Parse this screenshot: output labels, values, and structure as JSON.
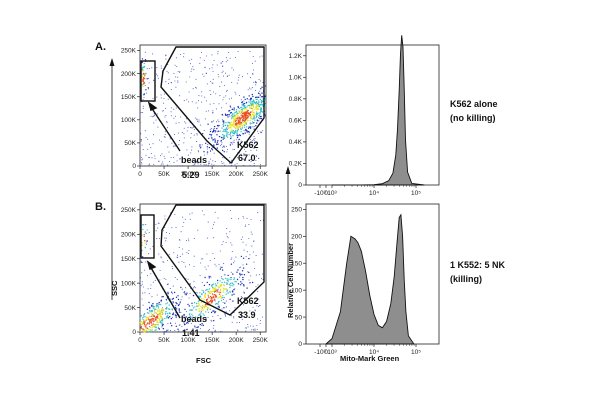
{
  "panels": [
    {
      "letter": "A.",
      "side_label": [
        "K562 alone",
        "(no killing)"
      ]
    },
    {
      "letter": "B.",
      "side_label": [
        "1 K552: 5 NK",
        "(killing)"
      ]
    }
  ],
  "scatter_axis": {
    "xlabel": "FSC",
    "ylabel": "SSC",
    "x_ticks": [
      "0",
      "50K",
      "100K",
      "150K",
      "200K",
      "250K"
    ],
    "y_ticks": [
      "0",
      "50K",
      "100K",
      "150K",
      "200K",
      "250K"
    ]
  },
  "histogram_axis": {
    "xlabel": "Mito-Mark Green",
    "ylabel": "Relative Cell Number",
    "top_y_ticks": [
      "0",
      "0.2K",
      "0.4K",
      "0.6K",
      "0.8K",
      "1.0K",
      "1.2K"
    ],
    "bottom_y_ticks": [
      "0",
      "50",
      "100",
      "150",
      "200",
      "250"
    ]
  },
  "chart_data": [
    {
      "type": "scatter",
      "panel": "A",
      "xlabel": "FSC",
      "ylabel": "SSC",
      "xlim": [
        0,
        262000
      ],
      "ylim": [
        0,
        262000
      ],
      "population_centers": [
        {
          "x": 215000,
          "y": 105000,
          "weight": 0.67
        },
        {
          "x": 8000,
          "y": 190000,
          "weight": 0.05
        }
      ],
      "gates": [
        {
          "name": "beads",
          "value": "5.29"
        },
        {
          "name": "K562",
          "value": "67.0"
        }
      ]
    },
    {
      "type": "line",
      "panel": "A",
      "xlabel": "Mito-Mark Green",
      "x_ticks": [
        "-10³",
        "0",
        "10³",
        "10⁴",
        "10⁵"
      ],
      "ylim": [
        0,
        1300
      ],
      "x": [
        3.0,
        3.7,
        4.0,
        4.2,
        4.35,
        4.45,
        4.52,
        4.56,
        4.6,
        4.63,
        4.66,
        4.69,
        4.72,
        4.75,
        4.8,
        4.9,
        5.2
      ],
      "values": [
        0,
        0,
        3,
        12,
        40,
        110,
        280,
        520,
        880,
        1220,
        1390,
        1280,
        900,
        420,
        120,
        15,
        0
      ]
    },
    {
      "type": "scatter",
      "panel": "B",
      "xlabel": "FSC",
      "ylabel": "SSC",
      "xlim": [
        0,
        262000
      ],
      "ylim": [
        0,
        262000
      ],
      "population_centers": [
        {
          "x": 150000,
          "y": 70000,
          "weight": 0.34
        },
        {
          "x": 20000,
          "y": 20000,
          "weight": 0.45
        },
        {
          "x": 8000,
          "y": 190000,
          "weight": 0.02
        }
      ],
      "gates": [
        {
          "name": "beads",
          "value": "1.41"
        },
        {
          "name": "K562",
          "value": "33.9"
        }
      ]
    },
    {
      "type": "line",
      "panel": "B",
      "xlabel": "Mito-Mark Green",
      "x_ticks": [
        "-10³",
        "0",
        "10³",
        "10⁴",
        "10⁵"
      ],
      "ylim": [
        0,
        260
      ],
      "x": [
        2.8,
        3.0,
        3.2,
        3.35,
        3.45,
        3.55,
        3.62,
        3.7,
        3.8,
        3.9,
        4.0,
        4.1,
        4.2,
        4.3,
        4.4,
        4.48,
        4.55,
        4.6,
        4.64,
        4.68,
        4.72,
        4.76,
        4.82,
        4.95
      ],
      "values": [
        0,
        10,
        60,
        150,
        200,
        195,
        188,
        172,
        135,
        90,
        55,
        35,
        30,
        42,
        75,
        125,
        190,
        235,
        240,
        200,
        120,
        60,
        15,
        0
      ]
    }
  ],
  "colors": {
    "accent": "#000000",
    "hist_fill": "#7a7a7a",
    "density_low": "#1a2fb8",
    "density_mid": "#35c4c8",
    "density_high": "#e8e020",
    "density_peak": "#e8501e"
  }
}
